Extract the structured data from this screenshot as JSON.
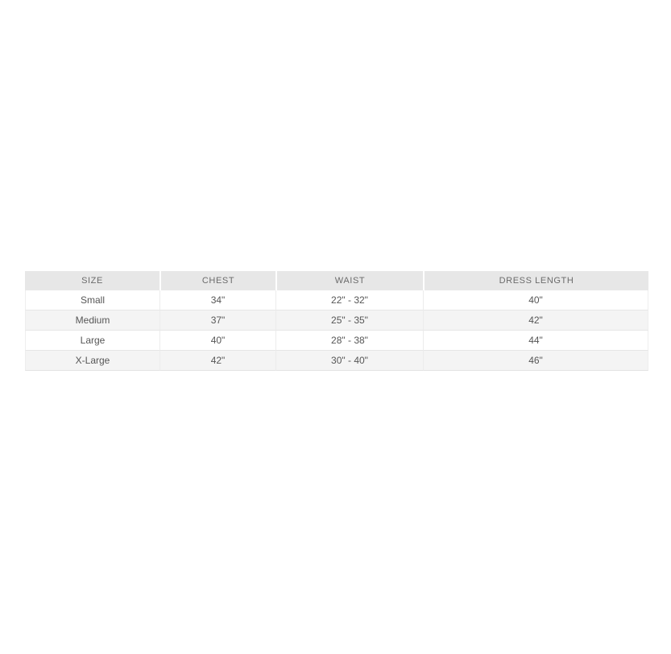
{
  "page": {
    "background_color": "#ffffff"
  },
  "size_chart": {
    "columns": [
      {
        "label": "SIZE"
      },
      {
        "label": "CHEST"
      },
      {
        "label": "WAIST"
      },
      {
        "label": "DRESS LENGTH"
      }
    ],
    "rows": [
      {
        "size": "Small",
        "chest": "34\"",
        "waist": "22\" - 32\"",
        "dress_length": "40\""
      },
      {
        "size": "Medium",
        "chest": "37\"",
        "waist": "25\" - 35\"",
        "dress_length": "42\""
      },
      {
        "size": "Large",
        "chest": "40\"",
        "waist": "28\" - 38\"",
        "dress_length": "44\""
      },
      {
        "size": "X-Large",
        "chest": "42\"",
        "waist": "30\" - 40\"",
        "dress_length": "46\""
      }
    ],
    "colors": {
      "header_background": "#e7e7e7",
      "row_background": "#ffffff",
      "row_alt_background": "#f4f4f4",
      "border": "#e6e6e6",
      "header_text": "#6b6b6b",
      "body_text": "#565656"
    }
  }
}
